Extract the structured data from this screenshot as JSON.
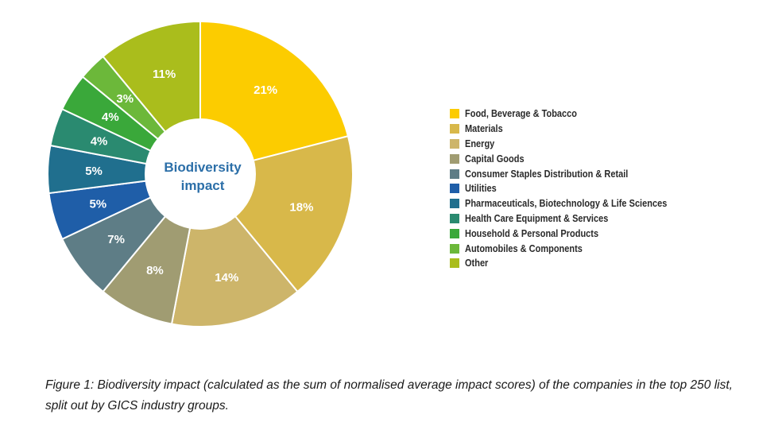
{
  "chart_data": {
    "type": "pie",
    "donut": true,
    "center_label": [
      "Biodiversity",
      "impact"
    ],
    "center_label_color": "#2c6fa8",
    "categories": [
      "Food, Beverage & Tobacco",
      "Materials",
      "Energy",
      "Capital Goods",
      "Consumer Staples Distribution & Retail",
      "Utilities",
      "Pharmaceuticals, Biotechnology & Life Sciences",
      "Health Care Equipment & Services",
      "Household & Personal Products",
      "Automobiles & Components",
      "Other"
    ],
    "values": [
      21,
      18,
      14,
      8,
      7,
      5,
      5,
      4,
      4,
      3,
      11
    ],
    "labels": [
      "21%",
      "18%",
      "14%",
      "8%",
      "7%",
      "5%",
      "5%",
      "4%",
      "4%",
      "3%",
      "11%"
    ],
    "colors": [
      "#fccc00",
      "#d8b84a",
      "#cdb56a",
      "#a09c72",
      "#5e7d86",
      "#1f5ea8",
      "#206f8e",
      "#2a8a70",
      "#3aa83a",
      "#6cb83a",
      "#aabd1c"
    ],
    "legend_position": "right"
  },
  "caption": {
    "line1": "Figure 1: Biodiversity impact (calculated as the sum of normalised average impact scores) of the companies in the top 250 list,",
    "line2": "split out by GICS industry groups."
  }
}
